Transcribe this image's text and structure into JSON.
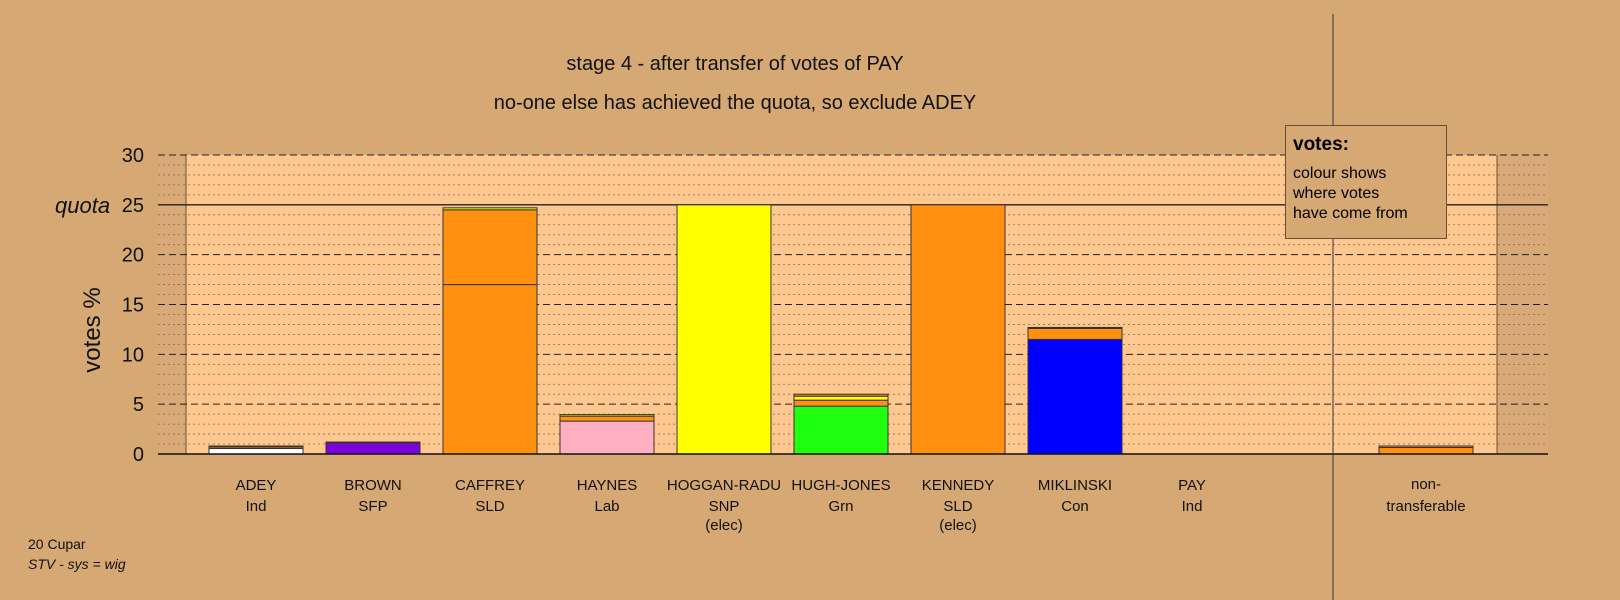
{
  "title": "stage 4 - after transfer of votes of PAY",
  "subtitle": "no-one else has achieved the quota, so exclude ADEY",
  "legend": {
    "heading": "votes:",
    "lines": [
      "colour shows",
      "where votes",
      "have come from"
    ]
  },
  "footer": {
    "line1": "20 Cupar",
    "line2": "STV - sys = wig"
  },
  "colors": {
    "background": "#d5a874",
    "plot_area": "#ffc890",
    "Ind_ADEY": "#ffffff",
    "SFP": "#8000e0",
    "SLD": "#ff9010",
    "Lab": "#ffb0c0",
    "SNP": "#ffff00",
    "Grn": "#20ff10",
    "Con": "#0000ff"
  },
  "chart_data": {
    "type": "bar",
    "stacked": true,
    "ylabel": "votes %",
    "ylim": [
      0,
      30
    ],
    "yticks": [
      0,
      5,
      10,
      15,
      20,
      25,
      30
    ],
    "quota": 25,
    "quota_label": "quota",
    "grid": true,
    "candidates": [
      {
        "name": "ADEY",
        "party": "Ind",
        "note": "",
        "segments": [
          {
            "from": "ADEY",
            "value": 0.55,
            "color": "#ffffff"
          },
          {
            "from": "SLD",
            "value": 0.15,
            "color": "#ff9010"
          },
          {
            "from": "SNP",
            "value": 0.1,
            "color": "#ffff00"
          }
        ]
      },
      {
        "name": "BROWN",
        "party": "SFP",
        "note": "",
        "segments": [
          {
            "from": "BROWN",
            "value": 1.1,
            "color": "#8000e0"
          },
          {
            "from": "SLD",
            "value": 0.1,
            "color": "#ff9010"
          }
        ]
      },
      {
        "name": "CAFFREY",
        "party": "SLD",
        "note": "",
        "segments": [
          {
            "from": "CAFFREY",
            "value": 17.0,
            "color": "#ff9010"
          },
          {
            "from": "KENNEDY",
            "value": 7.5,
            "color": "#ff9010"
          },
          {
            "from": "SNP",
            "value": 0.2,
            "color": "#ffff00"
          }
        ]
      },
      {
        "name": "HAYNES",
        "party": "Lab",
        "note": "",
        "segments": [
          {
            "from": "HAYNES",
            "value": 3.3,
            "color": "#ffb0c0"
          },
          {
            "from": "SLD",
            "value": 0.5,
            "color": "#ff9010"
          },
          {
            "from": "SNP",
            "value": 0.15,
            "color": "#ffff00"
          }
        ]
      },
      {
        "name": "HOGGAN-RADU",
        "party": "SNP",
        "note": "(elec)",
        "segments": [
          {
            "from": "HOGGAN-RADU",
            "value": 25.0,
            "color": "#ffff00"
          }
        ]
      },
      {
        "name": "HUGH-JONES",
        "party": "Grn",
        "note": "",
        "segments": [
          {
            "from": "HUGH-JONES",
            "value": 4.8,
            "color": "#20ff10"
          },
          {
            "from": "SLD",
            "value": 0.6,
            "color": "#ff9010"
          },
          {
            "from": "SNP",
            "value": 0.4,
            "color": "#ffff00"
          },
          {
            "from": "other",
            "value": 0.2,
            "color": "#ff9010"
          }
        ]
      },
      {
        "name": "KENNEDY",
        "party": "SLD",
        "note": "(elec)",
        "segments": [
          {
            "from": "KENNEDY",
            "value": 25.0,
            "color": "#ff9010"
          }
        ]
      },
      {
        "name": "MIKLINSKI",
        "party": "Con",
        "note": "",
        "segments": [
          {
            "from": "MIKLINSKI",
            "value": 11.5,
            "color": "#0000ff"
          },
          {
            "from": "SLD",
            "value": 1.1,
            "color": "#ff9010"
          },
          {
            "from": "SNP",
            "value": 0.1,
            "color": "#ffff00"
          }
        ]
      },
      {
        "name": "PAY",
        "party": "Ind",
        "note": "",
        "segments": []
      }
    ],
    "non_transferable": {
      "label_line1": "non-",
      "label_line2": "transferable",
      "segments": [
        {
          "from": "SLD",
          "value": 0.65,
          "color": "#ff9010"
        },
        {
          "from": "other",
          "value": 0.15,
          "color": "#ff9010"
        }
      ]
    }
  }
}
